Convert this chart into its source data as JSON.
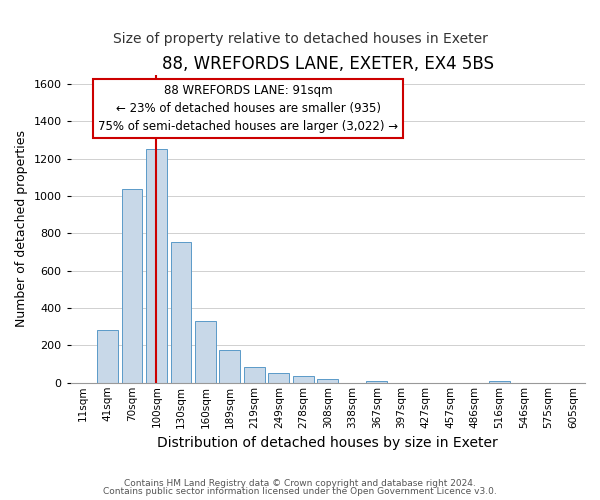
{
  "title": "88, WREFORDS LANE, EXETER, EX4 5BS",
  "subtitle": "Size of property relative to detached houses in Exeter",
  "xlabel": "Distribution of detached houses by size in Exeter",
  "ylabel": "Number of detached properties",
  "bar_labels": [
    "11sqm",
    "41sqm",
    "70sqm",
    "100sqm",
    "130sqm",
    "160sqm",
    "189sqm",
    "219sqm",
    "249sqm",
    "278sqm",
    "308sqm",
    "338sqm",
    "367sqm",
    "397sqm",
    "427sqm",
    "457sqm",
    "486sqm",
    "516sqm",
    "546sqm",
    "575sqm",
    "605sqm"
  ],
  "bar_heights": [
    0,
    285,
    1035,
    1250,
    755,
    330,
    175,
    85,
    50,
    35,
    20,
    0,
    10,
    0,
    0,
    0,
    0,
    10,
    0,
    0,
    0
  ],
  "bar_color": "#c8d8e8",
  "bar_edge_color": "#5a9ac8",
  "vline_x_index": 3,
  "vline_color": "#cc0000",
  "ylim": [
    0,
    1650
  ],
  "yticks": [
    0,
    200,
    400,
    600,
    800,
    1000,
    1200,
    1400,
    1600
  ],
  "annotation_line1": "88 WREFORDS LANE: 91sqm",
  "annotation_line2": "← 23% of detached houses are smaller (935)",
  "annotation_line3": "75% of semi-detached houses are larger (3,022) →",
  "footer_line1": "Contains HM Land Registry data © Crown copyright and database right 2024.",
  "footer_line2": "Contains public sector information licensed under the Open Government Licence v3.0.",
  "background_color": "#ffffff",
  "grid_color": "#d0d0d0",
  "title_fontsize": 12,
  "subtitle_fontsize": 10,
  "ylabel_fontsize": 9,
  "xlabel_fontsize": 10
}
